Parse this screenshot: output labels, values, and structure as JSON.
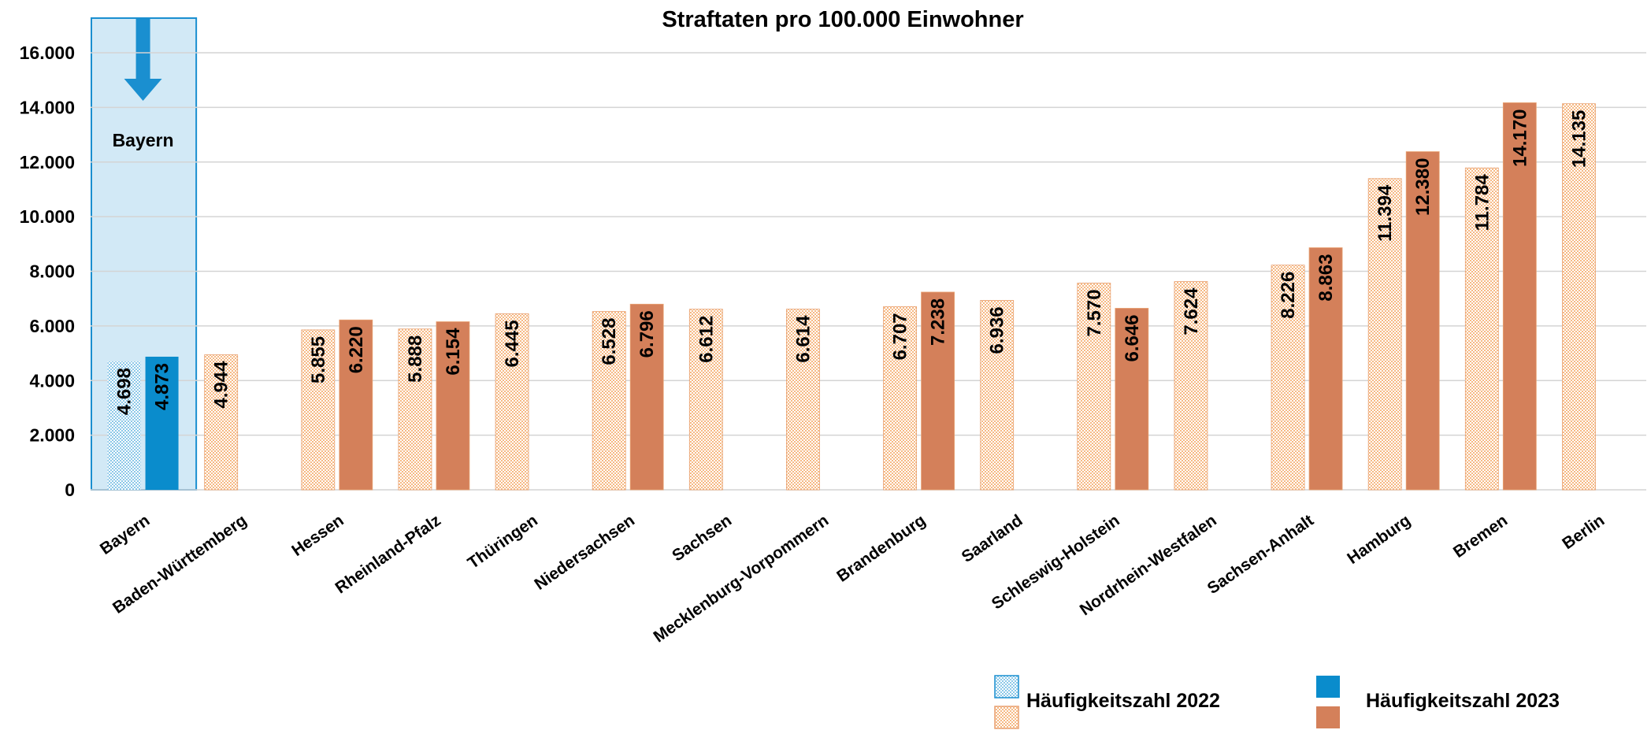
{
  "chart_data": {
    "type": "bar",
    "title": "Straftaten pro 100.000 Einwohner",
    "categories": [
      "Bayern",
      "Baden-Württemberg",
      "Hessen",
      "Rheinland-Pfalz",
      "Thüringen",
      "Niedersachsen",
      "Sachsen",
      "Mecklenburg-Vorpommern",
      "Brandenburg",
      "Saarland",
      "Schleswig-Holstein",
      "Nordrhein-Westfalen",
      "Sachsen-Anhalt",
      "Hamburg",
      "Bremen",
      "Berlin"
    ],
    "series": [
      {
        "name": "Häufigkeitszahl 2022",
        "color": "#f6b984",
        "highlight_color": "#8cc8e8",
        "pattern": "dotted",
        "values": [
          4698,
          4944,
          5855,
          5888,
          6445,
          6528,
          6612,
          6614,
          6707,
          6936,
          7570,
          7624,
          8226,
          11394,
          11784,
          14135
        ],
        "value_labels": [
          "4.698",
          "4.944",
          "5.855",
          "5.888",
          "6.445",
          "6.528",
          "6.612",
          "6.614",
          "6.707",
          "6.936",
          "7.570",
          "7.624",
          "8.226",
          "11.394",
          "11.784",
          "14.135"
        ]
      },
      {
        "name": "Häufigkeitszahl 2023",
        "color": "#d4805a",
        "highlight_color": "#0a8ccc",
        "pattern": "solid",
        "values": [
          4873,
          null,
          6220,
          6154,
          null,
          6796,
          null,
          null,
          7238,
          null,
          6646,
          null,
          8863,
          12380,
          14170,
          null
        ],
        "value_labels": [
          "4.873",
          null,
          "6.220",
          "6.154",
          null,
          "6.796",
          null,
          null,
          "7.238",
          null,
          "6.646",
          null,
          "8.863",
          "12.380",
          "14.170",
          null
        ]
      }
    ],
    "highlight": {
      "category": "Bayern",
      "label": "Bayern"
    },
    "ylim": [
      0,
      16000
    ],
    "yticks": [
      0,
      {
        "value": 2000,
        "label": "2.000"
      },
      {
        "value": 4000,
        "label": "4.000"
      },
      {
        "value": 6000,
        "label": "6.000"
      },
      {
        "value": 8000,
        "label": "8.000"
      },
      {
        "value": 10000,
        "label": "10.000"
      },
      {
        "value": 12000,
        "label": "12.000"
      },
      {
        "value": 14000,
        "label": "14.000"
      },
      {
        "value": 16000,
        "label": "16.000"
      }
    ],
    "grid": true
  }
}
